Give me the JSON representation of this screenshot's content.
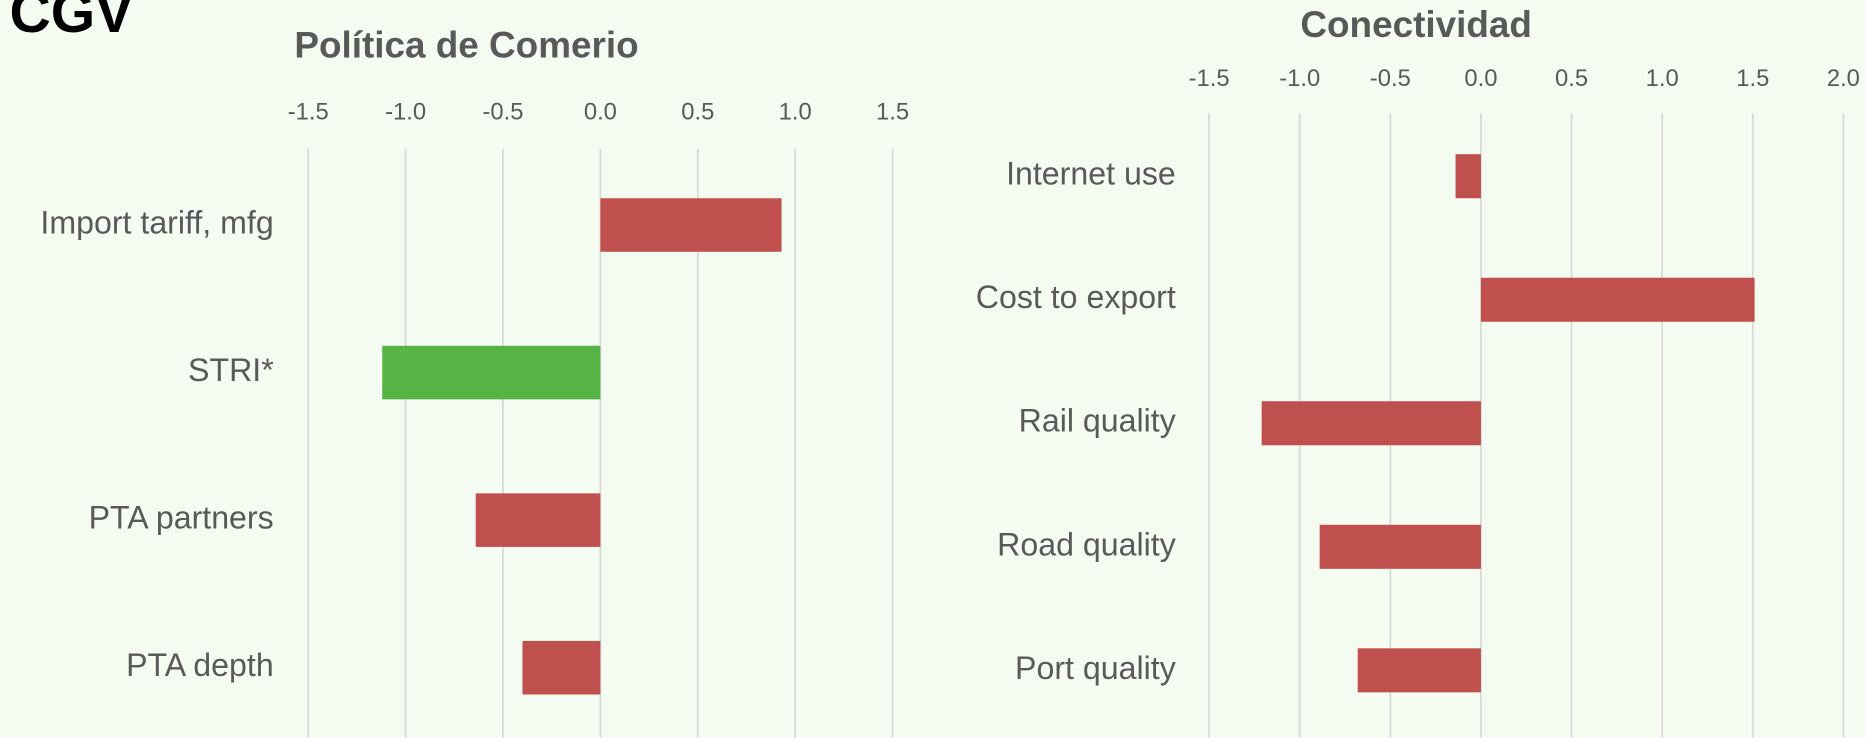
{
  "logo": "CGV",
  "chart_data": [
    {
      "type": "barh",
      "title": "Política de Comerio",
      "categories": [
        "Import tariff, mfg",
        "STRI*",
        "PTA partners",
        "PTA depth"
      ],
      "values": [
        0.93,
        -1.12,
        -0.64,
        -0.4
      ],
      "colors": [
        "#c0504d",
        "#58b347",
        "#c0504d",
        "#c0504d"
      ],
      "xlim": [
        -1.5,
        1.5
      ],
      "xticks": [
        -1.5,
        {
          "value": -1,
          "label": "-1.0"
        },
        -0.5,
        {
          "value": 0,
          "label": "0.0"
        },
        0.5,
        {
          "value": 1,
          "label": "1.0"
        },
        1.5
      ],
      "grid": true
    },
    {
      "type": "barh",
      "title": "Conectividad",
      "categories": [
        "Internet use",
        "Cost to export",
        "Rail quality",
        "Road quality",
        "Port quality"
      ],
      "values": [
        -0.14,
        1.51,
        -1.21,
        -0.89,
        -0.68
      ],
      "colors": [
        "#c0504d",
        "#c0504d",
        "#c0504d",
        "#c0504d",
        "#c0504d"
      ],
      "xlim": [
        -1.5,
        2.0
      ],
      "xticks": [
        -1.5,
        {
          "value": -1,
          "label": "-1.0"
        },
        -0.5,
        {
          "value": 0,
          "label": "0.0"
        },
        0.5,
        {
          "value": 1,
          "label": "1.0"
        },
        1.5,
        {
          "value": 2,
          "label": "2.0"
        }
      ],
      "grid": true
    }
  ]
}
